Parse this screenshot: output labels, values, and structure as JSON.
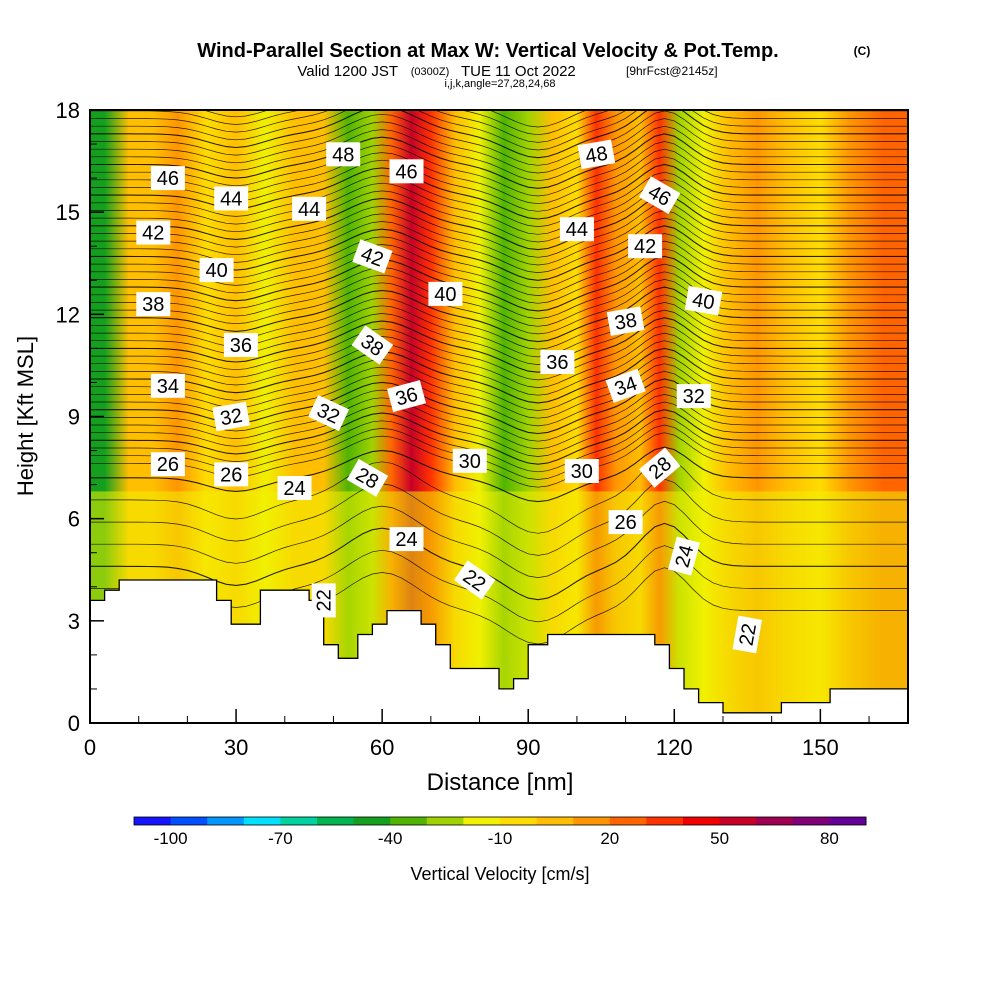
{
  "title": {
    "main": "Wind-Parallel Section at Max W: Vertical Velocity & Pot.Temp.",
    "copyright": "(C)",
    "valid_prefix": "Valid 1200 JST",
    "valid_utc": "(0300Z)",
    "valid_date": "TUE 11 Oct 2022",
    "forecast": "[9hrFcst@2145z]",
    "indices": "i,j,k,angle=27,28,24,68"
  },
  "chart_data": {
    "type": "heatmap",
    "xlabel": "Distance [nm]",
    "ylabel": "Height [Kft MSL]",
    "xlim": [
      0,
      168
    ],
    "ylim": [
      0,
      18
    ],
    "x_ticks": [
      0,
      30,
      60,
      90,
      120,
      150
    ],
    "y_ticks": [
      0,
      3,
      6,
      9,
      12,
      15,
      18
    ],
    "x_minor_step": 10,
    "y_minor_step": 1,
    "colorbar": {
      "label": "Vertical Velocity [cm/s]",
      "tick_values": [
        -100,
        -70,
        -40,
        -10,
        20,
        50,
        80
      ],
      "colors": [
        "#1414ff",
        "#0050ff",
        "#0096ff",
        "#00e1ff",
        "#00d2a0",
        "#00b450",
        "#14a01e",
        "#50b400",
        "#a0d200",
        "#f0f000",
        "#ffdc00",
        "#ffbe00",
        "#ff9600",
        "#ff6400",
        "#ff3200",
        "#f00000",
        "#c80028",
        "#a00050",
        "#800078",
        "#640096"
      ]
    },
    "velocity_columns": [
      {
        "x": 3,
        "w": -50
      },
      {
        "x": 8,
        "w": 5
      },
      {
        "x": 13,
        "w": 0
      },
      {
        "x": 18,
        "w": 10
      },
      {
        "x": 24,
        "w": -10
      },
      {
        "x": 30,
        "w": 5
      },
      {
        "x": 36,
        "w": -20
      },
      {
        "x": 42,
        "w": 5
      },
      {
        "x": 48,
        "w": 0
      },
      {
        "x": 53,
        "w": -40
      },
      {
        "x": 58,
        "w": -30
      },
      {
        "x": 62,
        "w": 20
      },
      {
        "x": 66,
        "w": 50
      },
      {
        "x": 70,
        "w": 30
      },
      {
        "x": 75,
        "w": 5
      },
      {
        "x": 80,
        "w": -20
      },
      {
        "x": 85,
        "w": -40
      },
      {
        "x": 90,
        "w": -30
      },
      {
        "x": 95,
        "w": 0
      },
      {
        "x": 100,
        "w": -10
      },
      {
        "x": 104,
        "w": 35
      },
      {
        "x": 108,
        "w": 15
      },
      {
        "x": 113,
        "w": 5
      },
      {
        "x": 117,
        "w": 30
      },
      {
        "x": 121,
        "w": -30
      },
      {
        "x": 126,
        "w": -20
      },
      {
        "x": 131,
        "w": 5
      },
      {
        "x": 137,
        "w": 15
      },
      {
        "x": 143,
        "w": 5
      },
      {
        "x": 150,
        "w": -10
      },
      {
        "x": 156,
        "w": 10
      },
      {
        "x": 163,
        "w": 20
      }
    ],
    "terrain": [
      {
        "x": 0,
        "h": 3.6
      },
      {
        "x": 3,
        "h": 3.6
      },
      {
        "x": 3,
        "h": 3.9
      },
      {
        "x": 6,
        "h": 3.9
      },
      {
        "x": 6,
        "h": 4.2
      },
      {
        "x": 26,
        "h": 4.2
      },
      {
        "x": 26,
        "h": 3.6
      },
      {
        "x": 29,
        "h": 3.6
      },
      {
        "x": 29,
        "h": 2.9
      },
      {
        "x": 35,
        "h": 2.9
      },
      {
        "x": 35,
        "h": 3.9
      },
      {
        "x": 45,
        "h": 3.9
      },
      {
        "x": 45,
        "h": 3.6
      },
      {
        "x": 48,
        "h": 3.6
      },
      {
        "x": 48,
        "h": 2.3
      },
      {
        "x": 51,
        "h": 2.3
      },
      {
        "x": 51,
        "h": 1.9
      },
      {
        "x": 55,
        "h": 1.9
      },
      {
        "x": 55,
        "h": 2.6
      },
      {
        "x": 58,
        "h": 2.6
      },
      {
        "x": 58,
        "h": 2.9
      },
      {
        "x": 61,
        "h": 2.9
      },
      {
        "x": 61,
        "h": 3.3
      },
      {
        "x": 68,
        "h": 3.3
      },
      {
        "x": 68,
        "h": 2.9
      },
      {
        "x": 71,
        "h": 2.9
      },
      {
        "x": 71,
        "h": 2.3
      },
      {
        "x": 74,
        "h": 2.3
      },
      {
        "x": 74,
        "h": 1.6
      },
      {
        "x": 84,
        "h": 1.6
      },
      {
        "x": 84,
        "h": 1.0
      },
      {
        "x": 87,
        "h": 1.0
      },
      {
        "x": 87,
        "h": 1.3
      },
      {
        "x": 90,
        "h": 1.3
      },
      {
        "x": 90,
        "h": 2.3
      },
      {
        "x": 94,
        "h": 2.3
      },
      {
        "x": 94,
        "h": 2.6
      },
      {
        "x": 116,
        "h": 2.6
      },
      {
        "x": 116,
        "h": 2.3
      },
      {
        "x": 119,
        "h": 2.3
      },
      {
        "x": 119,
        "h": 1.6
      },
      {
        "x": 122,
        "h": 1.6
      },
      {
        "x": 122,
        "h": 1.0
      },
      {
        "x": 125,
        "h": 1.0
      },
      {
        "x": 125,
        "h": 0.6
      },
      {
        "x": 130,
        "h": 0.6
      },
      {
        "x": 130,
        "h": 0.3
      },
      {
        "x": 142,
        "h": 0.3
      },
      {
        "x": 142,
        "h": 0.6
      },
      {
        "x": 152,
        "h": 0.6
      },
      {
        "x": 152,
        "h": 1.0
      },
      {
        "x": 168,
        "h": 1.0
      }
    ],
    "theta_contour_levels": [
      22,
      24,
      26,
      28,
      30,
      32,
      34,
      36,
      38,
      40,
      42,
      44,
      46,
      48
    ],
    "theta_labels": [
      {
        "text": "46",
        "x": 16,
        "y": 16.0,
        "rot": 0
      },
      {
        "text": "44",
        "x": 29,
        "y": 15.4,
        "rot": 0
      },
      {
        "text": "48",
        "x": 52,
        "y": 16.7,
        "rot": 0
      },
      {
        "text": "46",
        "x": 65,
        "y": 16.2,
        "rot": 0
      },
      {
        "text": "48",
        "x": 104,
        "y": 16.7,
        "rot": -10
      },
      {
        "text": "46",
        "x": 117,
        "y": 15.5,
        "rot": 30
      },
      {
        "text": "44",
        "x": 45,
        "y": 15.1,
        "rot": 0
      },
      {
        "text": "42",
        "x": 13,
        "y": 14.4,
        "rot": 0
      },
      {
        "text": "44",
        "x": 100,
        "y": 14.5,
        "rot": 0
      },
      {
        "text": "42",
        "x": 114,
        "y": 14.0,
        "rot": 0
      },
      {
        "text": "42",
        "x": 58,
        "y": 13.7,
        "rot": 20
      },
      {
        "text": "40",
        "x": 26,
        "y": 13.3,
        "rot": 0
      },
      {
        "text": "40",
        "x": 73,
        "y": 12.6,
        "rot": 0
      },
      {
        "text": "40",
        "x": 126,
        "y": 12.4,
        "rot": 10
      },
      {
        "text": "38",
        "x": 13,
        "y": 12.3,
        "rot": 0
      },
      {
        "text": "38",
        "x": 110,
        "y": 11.8,
        "rot": -10
      },
      {
        "text": "36",
        "x": 31,
        "y": 11.1,
        "rot": 0
      },
      {
        "text": "38",
        "x": 58,
        "y": 11.1,
        "rot": 35
      },
      {
        "text": "36",
        "x": 96,
        "y": 10.6,
        "rot": 0
      },
      {
        "text": "34",
        "x": 16,
        "y": 9.9,
        "rot": 0
      },
      {
        "text": "34",
        "x": 110,
        "y": 9.9,
        "rot": -20
      },
      {
        "text": "36",
        "x": 65,
        "y": 9.6,
        "rot": -15
      },
      {
        "text": "32",
        "x": 124,
        "y": 9.6,
        "rot": 0
      },
      {
        "text": "32",
        "x": 29,
        "y": 9.0,
        "rot": -10
      },
      {
        "text": "32",
        "x": 49,
        "y": 9.1,
        "rot": 25
      },
      {
        "text": "30",
        "x": 78,
        "y": 7.7,
        "rot": 0
      },
      {
        "text": "26",
        "x": 16,
        "y": 7.6,
        "rot": 0
      },
      {
        "text": "30",
        "x": 101,
        "y": 7.4,
        "rot": 0
      },
      {
        "text": "28",
        "x": 117,
        "y": 7.5,
        "rot": -40
      },
      {
        "text": "26",
        "x": 29,
        "y": 7.3,
        "rot": 0
      },
      {
        "text": "28",
        "x": 57,
        "y": 7.2,
        "rot": 30
      },
      {
        "text": "24",
        "x": 42,
        "y": 6.9,
        "rot": 0
      },
      {
        "text": "26",
        "x": 110,
        "y": 5.9,
        "rot": 0
      },
      {
        "text": "24",
        "x": 65,
        "y": 5.4,
        "rot": 0
      },
      {
        "text": "24",
        "x": 122,
        "y": 4.9,
        "rot": -75
      },
      {
        "text": "22",
        "x": 79,
        "y": 4.2,
        "rot": 35
      },
      {
        "text": "22",
        "x": 48,
        "y": 3.6,
        "rot": -90
      },
      {
        "text": "22",
        "x": 135,
        "y": 2.6,
        "rot": -80
      }
    ]
  }
}
